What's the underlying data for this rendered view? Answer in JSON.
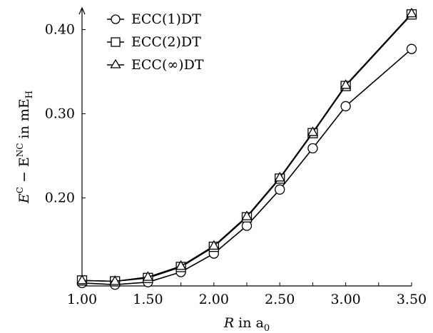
{
  "chart_data": {
    "type": "line",
    "xlabel": {
      "main": "R",
      "mid": " in a",
      "sub": "0"
    },
    "ylabel": {
      "e1": "E",
      "sup1": "C",
      "mid": " − E",
      "sup2": "NC",
      "tail": " in mE",
      "sub": "H"
    },
    "xlim": [
      1.0,
      3.5
    ],
    "ylim": [
      0.0955,
      0.425
    ],
    "x_ticks": [
      1.0,
      1.25,
      1.5,
      1.75,
      2.0,
      2.25,
      2.5,
      2.75,
      3.0,
      3.25,
      3.5
    ],
    "x_tick_labels": [
      "1.00",
      "1.50",
      "2.00",
      "2.50",
      "3.00",
      "3.50"
    ],
    "x_tick_label_values": [
      1.0,
      1.5,
      2.0,
      2.5,
      3.0,
      3.5
    ],
    "y_ticks": [
      0.2,
      0.3,
      0.4
    ],
    "y_tick_labels": [
      "0.20",
      "0.30",
      "0.40"
    ],
    "grid": false,
    "legend_position": "top-left",
    "x": [
      1.0,
      1.25,
      1.5,
      1.75,
      2.0,
      2.25,
      2.5,
      2.75,
      3.0,
      3.5
    ],
    "series": [
      {
        "name": "ECC(1)DT",
        "marker": "circle",
        "values": [
          0.099,
          0.097,
          0.1,
          0.112,
          0.134,
          0.167,
          0.21,
          0.259,
          0.309,
          0.377
        ]
      },
      {
        "name": "ECC(2)DT",
        "marker": "square",
        "values": [
          0.102,
          0.101,
          0.105,
          0.118,
          0.142,
          0.177,
          0.223,
          0.277,
          0.333,
          0.418
        ]
      },
      {
        "name": "ECC(∞)DT",
        "marker": "triangle",
        "values": [
          0.102,
          0.101,
          0.106,
          0.119,
          0.143,
          0.178,
          0.224,
          0.278,
          0.334,
          0.419
        ]
      }
    ]
  }
}
